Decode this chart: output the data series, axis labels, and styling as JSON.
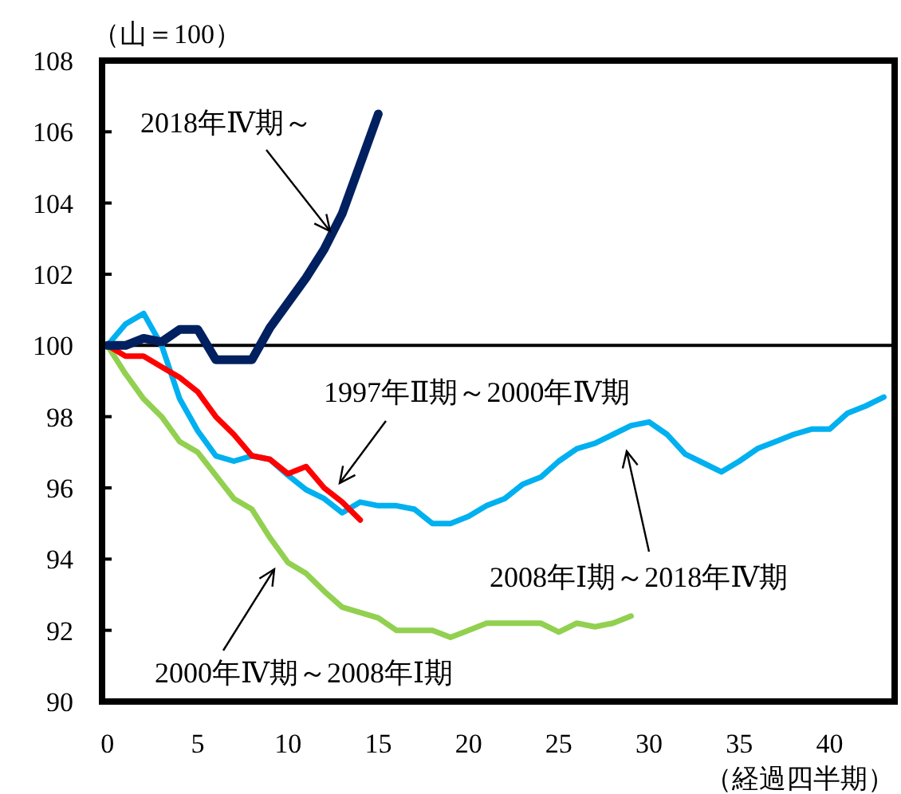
{
  "chart_data": {
    "type": "line",
    "ylabel": "（山＝100）",
    "xlabel": "（経過四半期）",
    "xlim": [
      -0.3,
      43.6
    ],
    "ylim": [
      90,
      108
    ],
    "xticks": [
      0,
      5,
      10,
      15,
      20,
      25,
      30,
      35,
      40
    ],
    "yticks": [
      90,
      92,
      94,
      96,
      98,
      100,
      102,
      104,
      106,
      108
    ],
    "grid": false,
    "marker": "none",
    "line_style": "solid",
    "ref_lines": [
      {
        "axis": "y",
        "value": 100,
        "color": "#000000"
      }
    ],
    "series": [
      {
        "name": "2000年Ⅳ期～2008年Ⅰ期",
        "color": "#92d050",
        "x": [
          0,
          1,
          2,
          3,
          4,
          5,
          6,
          7,
          8,
          9,
          10,
          11,
          12,
          13,
          14,
          15,
          16,
          17,
          18,
          19,
          20,
          21,
          22,
          23,
          24,
          25,
          26,
          27,
          28,
          29
        ],
        "values": [
          100,
          99.2,
          98.5,
          98.0,
          97.3,
          97.0,
          96.35,
          95.7,
          95.4,
          94.6,
          93.9,
          93.6,
          93.1,
          92.65,
          92.5,
          92.35,
          92.0,
          92.0,
          92.0,
          91.8,
          92.0,
          92.2,
          92.2,
          92.2,
          92.2,
          91.95,
          92.2,
          92.1,
          92.2,
          92.4
        ]
      },
      {
        "name": "2008年Ⅰ期～2018年Ⅳ期",
        "color": "#00b0f0",
        "x": [
          0,
          1,
          2,
          3,
          4,
          5,
          6,
          7,
          8,
          9,
          10,
          11,
          12,
          13,
          14,
          15,
          16,
          17,
          18,
          19,
          20,
          21,
          22,
          23,
          24,
          25,
          26,
          27,
          28,
          29,
          30,
          31,
          32,
          33,
          34,
          35,
          36,
          37,
          38,
          39,
          40,
          41,
          42,
          43
        ],
        "values": [
          100,
          100.6,
          100.9,
          100.0,
          98.5,
          97.6,
          96.9,
          96.75,
          96.9,
          96.8,
          96.35,
          95.95,
          95.7,
          95.3,
          95.6,
          95.5,
          95.5,
          95.4,
          95.0,
          95.0,
          95.2,
          95.5,
          95.7,
          96.1,
          96.3,
          96.75,
          97.1,
          97.25,
          97.5,
          97.75,
          97.85,
          97.5,
          96.95,
          96.7,
          96.45,
          96.75,
          97.1,
          97.3,
          97.5,
          97.65,
          97.65,
          98.1,
          98.3,
          98.55
        ]
      },
      {
        "name": "1997年Ⅱ期～2000年Ⅳ期",
        "color": "#ff0000",
        "x": [
          0,
          1,
          2,
          3,
          4,
          5,
          6,
          7,
          8,
          9,
          10,
          11,
          12,
          13,
          14
        ],
        "values": [
          100,
          99.7,
          99.7,
          99.4,
          99.1,
          98.7,
          98.0,
          97.5,
          96.9,
          96.8,
          96.4,
          96.6,
          96.0,
          95.6,
          95.1
        ]
      },
      {
        "name": "2018年Ⅳ期～",
        "color": "#002060",
        "x": [
          0,
          1,
          2,
          3,
          4,
          5,
          6,
          7,
          8,
          9,
          10,
          11,
          12,
          13,
          14,
          15
        ],
        "values": [
          100,
          100.0,
          100.2,
          100.1,
          100.45,
          100.45,
          99.6,
          99.6,
          99.6,
          100.5,
          101.2,
          101.9,
          102.7,
          103.7,
          105.1,
          106.5
        ]
      }
    ]
  }
}
